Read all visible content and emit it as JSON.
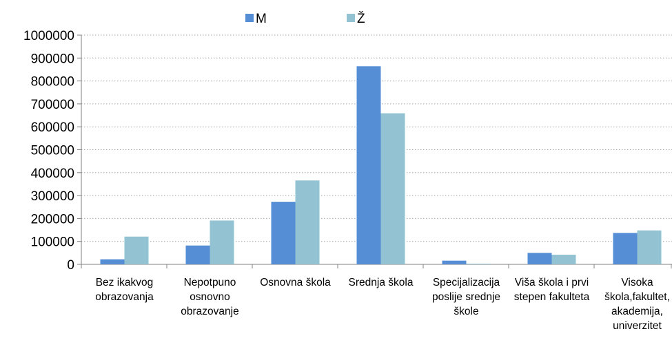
{
  "chart_data": {
    "type": "bar",
    "categories": [
      [
        "Bez ikakvog",
        "obrazovanja"
      ],
      [
        "Nepotpuno",
        "osnovno",
        "obrazovanje"
      ],
      [
        "Osnovna škola"
      ],
      [
        "Srednja škola"
      ],
      [
        "Specijalizacija",
        "poslije srednje",
        "škole"
      ],
      [
        "Viša škola i prvi",
        "stepen fakulteta"
      ],
      [
        "Visoka",
        "škola,fakultet,",
        "akademija,",
        "univerzitet"
      ]
    ],
    "series": [
      {
        "name": "M",
        "color": "#558ed5",
        "values": [
          22000,
          82000,
          273000,
          864000,
          16000,
          50000,
          137000
        ]
      },
      {
        "name": "Ž",
        "color": "#93c3d3",
        "values": [
          121000,
          191000,
          366000,
          659000,
          3000,
          42000,
          148000
        ]
      }
    ],
    "ylim": [
      0,
      1000000
    ],
    "yticks": [
      "0",
      "100000",
      "200000",
      "300000",
      "400000",
      "500000",
      "600000",
      "700000",
      "800000",
      "900000",
      "1000000"
    ],
    "grid": true,
    "legend_position": "top"
  }
}
